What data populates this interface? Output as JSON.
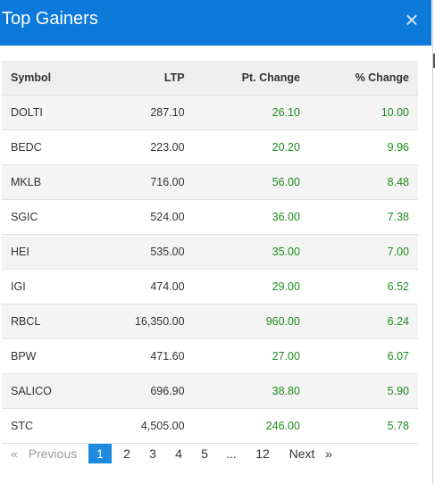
{
  "header": {
    "title": "Top Gainers",
    "close_glyph": "×",
    "color": "#0c79db"
  },
  "table": {
    "columns": [
      "Symbol",
      "LTP",
      "Pt. Change",
      "% Change"
    ],
    "rows": [
      {
        "symbol": "DOLTI",
        "ltp": "287.10",
        "pt_change": "26.10",
        "pct_change": "10.00"
      },
      {
        "symbol": "BEDC",
        "ltp": "223.00",
        "pt_change": "20.20",
        "pct_change": "9.96"
      },
      {
        "symbol": "MKLB",
        "ltp": "716.00",
        "pt_change": "56.00",
        "pct_change": "8.48"
      },
      {
        "symbol": "SGIC",
        "ltp": "524.00",
        "pt_change": "36.00",
        "pct_change": "7.38"
      },
      {
        "symbol": "HEI",
        "ltp": "535.00",
        "pt_change": "35.00",
        "pct_change": "7.00"
      },
      {
        "symbol": "IGI",
        "ltp": "474.00",
        "pt_change": "29.00",
        "pct_change": "6.52"
      },
      {
        "symbol": "RBCL",
        "ltp": "16,350.00",
        "pt_change": "960.00",
        "pct_change": "6.24"
      },
      {
        "symbol": "BPW",
        "ltp": "471.60",
        "pt_change": "27.00",
        "pct_change": "6.07"
      },
      {
        "symbol": "SALICO",
        "ltp": "696.90",
        "pt_change": "38.80",
        "pct_change": "5.90"
      },
      {
        "symbol": "STC",
        "ltp": "4,505.00",
        "pt_change": "246.00",
        "pct_change": "5.78"
      }
    ]
  },
  "pagination": {
    "prev_arrow": "«",
    "prev_label": "Previous",
    "pages": [
      "1",
      "2",
      "3",
      "4",
      "5"
    ],
    "ellipsis": "...",
    "last_page": "12",
    "next_label": "Next",
    "next_arrow": "»",
    "current_page": "1"
  },
  "colors": {
    "positive": "#1d8a1d",
    "active_page": "#1f8be0"
  }
}
